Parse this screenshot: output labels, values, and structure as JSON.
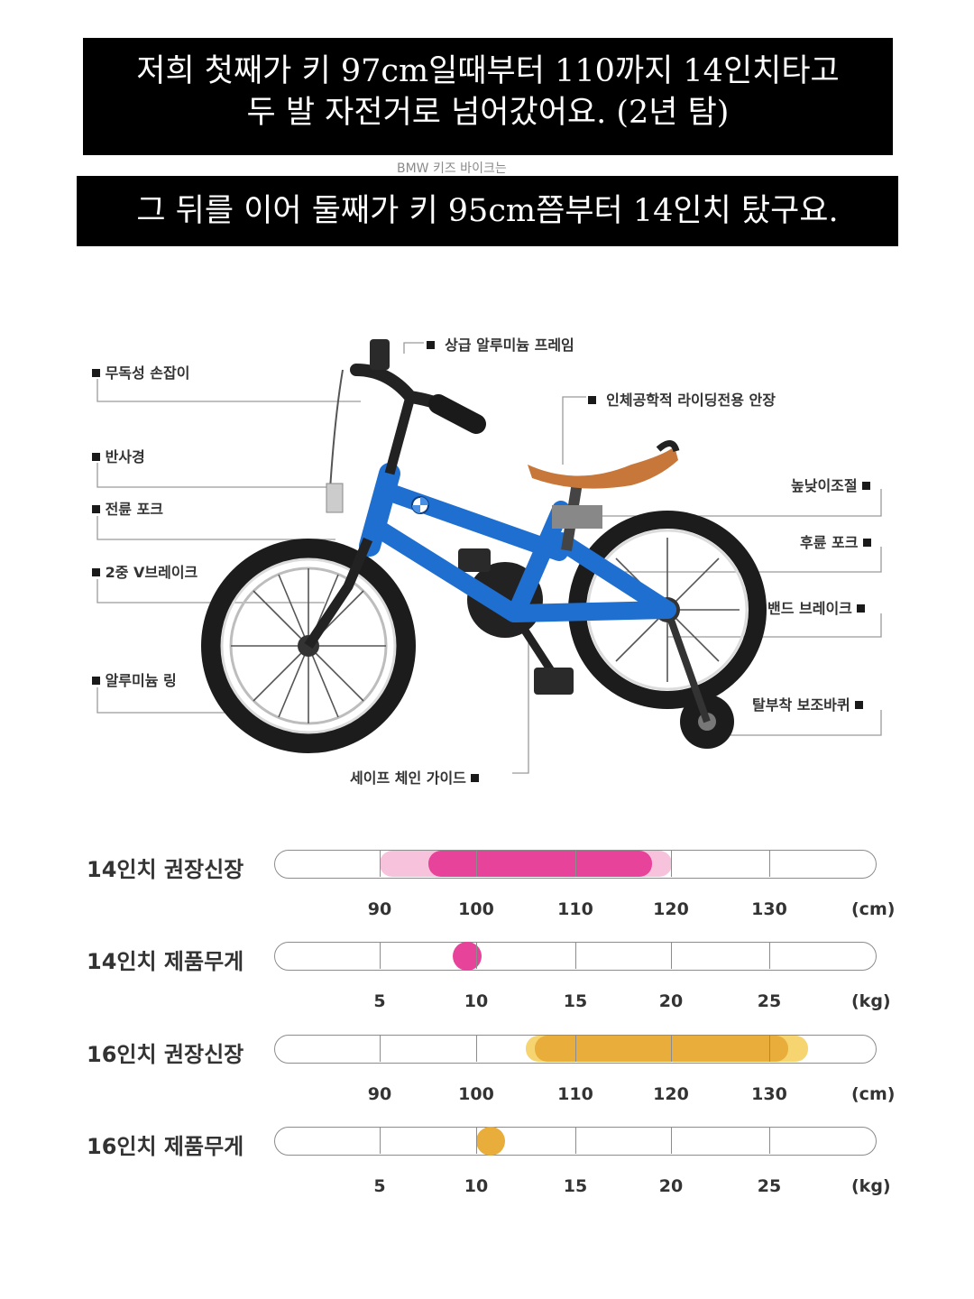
{
  "caption1": {
    "line1": "저희 첫째가 키 97cm일때부터 110까지 14인치타고",
    "line2": "두 발 자전거로 넘어갔어요. (2년 탐)"
  },
  "caption_ghost": "BMW 키즈 바이크는",
  "caption2": "그 뒤를 이어 둘째가 키 95cm쯤부터 14인치 탔구요.",
  "callouts": {
    "frame": "상급 알루미늄 프레임",
    "grip": "무독성 손잡이",
    "saddle": "인체공학적 라이딩전용 안장",
    "reflector": "반사경",
    "height_adjust": "높낮이조절",
    "front_fork": "전륜 포크",
    "rear_fork": "후륜 포크",
    "v_brake": "2중 V브레이크",
    "band_brake": "밴드 브레이크",
    "rim": "알루미늄 링",
    "training_wheels": "탈부착 보조바퀴",
    "chain_guide": "세이프 체인 가이드"
  },
  "colors": {
    "bike_blue": "#1f6fd1",
    "saddle_tan": "#c8773a",
    "pink": "#e8439a",
    "pink_light": "#f6b8d6",
    "orange": "#e8ad3a",
    "orange_light": "#f5cc57"
  },
  "gauges": [
    {
      "label": "14인치 권장신장",
      "unit": "(cm)",
      "ticks": [
        "90",
        "100",
        "110",
        "120",
        "130"
      ],
      "tick_values": [
        90,
        100,
        110,
        120,
        130
      ],
      "range": [
        95,
        118
      ],
      "range_light": [
        90,
        120
      ],
      "color": "pink"
    },
    {
      "label": "14인치 제품무게",
      "unit": "(kg)",
      "ticks": [
        "5",
        "10",
        "15",
        "20",
        "25"
      ],
      "tick_values": [
        5,
        10,
        15,
        20,
        25
      ],
      "point": 9.5,
      "color": "pink"
    },
    {
      "label": "16인치 권장신장",
      "unit": "(cm)",
      "ticks": [
        "90",
        "100",
        "110",
        "120",
        "130"
      ],
      "tick_values": [
        90,
        100,
        110,
        120,
        130
      ],
      "range": [
        106,
        132
      ],
      "range_light": [
        105,
        134
      ],
      "color": "orange"
    },
    {
      "label": "16인치 제품무게",
      "unit": "(kg)",
      "ticks": [
        "5",
        "10",
        "15",
        "20",
        "25"
      ],
      "tick_values": [
        5,
        10,
        15,
        20,
        25
      ],
      "point": 10.7,
      "color": "orange"
    }
  ]
}
